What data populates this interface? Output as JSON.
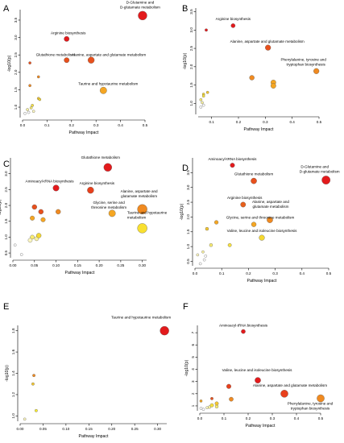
{
  "chart_data": [
    {
      "type": "scatter",
      "letter": "A",
      "xlabel": "Pathway Impact",
      "ylabel": "-log10(p)",
      "xlim": [
        0,
        0.5
      ],
      "ylim": [
        0.7,
        3.8
      ],
      "xticks": [
        0,
        0.1,
        0.2,
        0.3,
        0.4,
        0.5
      ],
      "yticks": [
        1.0,
        1.5,
        2.0,
        2.5,
        3.0,
        3.5
      ],
      "points": [
        {
          "x": 0.49,
          "y": 3.63,
          "size": 5.5,
          "color": "#e31a1c"
        },
        {
          "x": 0.18,
          "y": 2.96,
          "size": 3.2,
          "color": "#e31a1c"
        },
        {
          "x": 0.18,
          "y": 2.35,
          "size": 3.2,
          "color": "#e8501c"
        },
        {
          "x": 0.28,
          "y": 2.35,
          "size": 4.0,
          "color": "#e8501c"
        },
        {
          "x": 0.33,
          "y": 1.48,
          "size": 4.2,
          "color": "#f5a623"
        },
        {
          "x": 0.03,
          "y": 2.27,
          "size": 1.6,
          "color": "#e8501c"
        },
        {
          "x": 0.03,
          "y": 1.62,
          "size": 1.6,
          "color": "#f08a20"
        },
        {
          "x": 0.065,
          "y": 1.87,
          "size": 1.6,
          "color": "#f08a20"
        },
        {
          "x": 0.065,
          "y": 1.25,
          "size": 1.6,
          "color": "#f5c830"
        },
        {
          "x": 0.07,
          "y": 1.22,
          "size": 1.6,
          "color": "#f5d830"
        },
        {
          "x": 0.04,
          "y": 1.05,
          "size": 1.6,
          "color": "#f7e040"
        },
        {
          "x": 0.035,
          "y": 0.98,
          "size": 1.6,
          "color": "#f9ec70"
        },
        {
          "x": 0.02,
          "y": 0.93,
          "size": 1.6,
          "color": "#fbf3a0"
        },
        {
          "x": 0.045,
          "y": 0.88,
          "size": 1.6,
          "color": "#fdf7c0"
        },
        {
          "x": 0.025,
          "y": 0.85,
          "size": 1.6,
          "color": "#ffffff"
        },
        {
          "x": 0.01,
          "y": 0.82,
          "size": 1.6,
          "color": "#ffffff"
        }
      ],
      "annotations": [
        {
          "text": "D-Glutamine and",
          "point": 0,
          "dx": -3,
          "dy": -15
        },
        {
          "text": "D-glutamate metabolism",
          "point": 0,
          "dx": -3,
          "dy": -9
        },
        {
          "text": "Arginine biosynthesis",
          "point": 1,
          "dx": 2,
          "dy": -6
        },
        {
          "text": "Glutathione metabolism",
          "point": 2,
          "dx": -14,
          "dy": -5
        },
        {
          "text": "Alanine, aspartate and glutamate metabolism",
          "point": 3,
          "dx": 22,
          "dy": -5
        },
        {
          "text": "Taurine and hypotaurine metabolism",
          "point": 4,
          "dx": 6,
          "dy": -7
        }
      ]
    },
    {
      "type": "scatter",
      "letter": "B",
      "xlabel": "Pathway Impact",
      "ylabel": "-log10(p)",
      "xlim": [
        0.05,
        0.5
      ],
      "ylim": [
        0.7,
        3.6
      ],
      "xticks": [
        0.1,
        0.2,
        0.3,
        0.4,
        0.5
      ],
      "yticks": [
        1.0,
        1.5,
        2.0,
        2.5,
        3.0,
        3.5
      ],
      "points": [
        {
          "x": 0.18,
          "y": 3.12,
          "size": 2.6,
          "color": "#e31a1c"
        },
        {
          "x": 0.08,
          "y": 3.0,
          "size": 1.7,
          "color": "#e31a1c"
        },
        {
          "x": 0.31,
          "y": 2.52,
          "size": 3.4,
          "color": "#e8501c"
        },
        {
          "x": 0.49,
          "y": 1.88,
          "size": 3.4,
          "color": "#f08a20"
        },
        {
          "x": 0.25,
          "y": 1.7,
          "size": 3.0,
          "color": "#f08a20"
        },
        {
          "x": 0.33,
          "y": 1.57,
          "size": 3.2,
          "color": "#f5a623"
        },
        {
          "x": 0.33,
          "y": 1.48,
          "size": 3.2,
          "color": "#f5a623"
        },
        {
          "x": 0.085,
          "y": 1.3,
          "size": 1.6,
          "color": "#f5c830"
        },
        {
          "x": 0.07,
          "y": 1.25,
          "size": 1.6,
          "color": "#f5d830"
        },
        {
          "x": 0.07,
          "y": 1.2,
          "size": 1.6,
          "color": "#f7e040"
        },
        {
          "x": 0.06,
          "y": 1.1,
          "size": 1.6,
          "color": "#f9ec70"
        },
        {
          "x": 0.065,
          "y": 1.02,
          "size": 1.6,
          "color": "#fbf3a0"
        },
        {
          "x": 0.07,
          "y": 0.95,
          "size": 1.6,
          "color": "#ffffff"
        },
        {
          "x": 0.06,
          "y": 0.9,
          "size": 1.6,
          "color": "#ffffff"
        }
      ],
      "annotations": [
        {
          "text": "Arginine biosynthesis",
          "point": 0,
          "dx": 0,
          "dy": -7
        },
        {
          "text": "Alanine, aspartate and glutamate metabolism",
          "point": 2,
          "dx": -1,
          "dy": -6
        },
        {
          "text": "Phenylalanine, tyrosine and",
          "point": 3,
          "dx": -16,
          "dy": -13
        },
        {
          "text": "tryptophan biosynthesis",
          "point": 3,
          "dx": -13,
          "dy": -7
        }
      ]
    },
    {
      "type": "scatter",
      "letter": "C",
      "xlabel": "Pathway Impact",
      "ylabel": "-log10(p)",
      "xlim": [
        0,
        0.31
      ],
      "ylim": [
        0.35,
        3.5
      ],
      "xticks": [
        0.0,
        0.05,
        0.1,
        0.15,
        0.2,
        0.25,
        0.3
      ],
      "yticks": [
        0.5,
        1.0,
        1.5,
        2.0,
        2.5,
        3.0
      ],
      "points": [
        {
          "x": 0.22,
          "y": 3.2,
          "size": 5.0,
          "color": "#e31a1c"
        },
        {
          "x": 0.1,
          "y": 2.55,
          "size": 3.8,
          "color": "#e31a1c"
        },
        {
          "x": 0.18,
          "y": 2.48,
          "size": 4.0,
          "color": "#e8401c"
        },
        {
          "x": 0.3,
          "y": 1.88,
          "size": 6.0,
          "color": "#f08a20"
        },
        {
          "x": 0.23,
          "y": 1.75,
          "size": 4.2,
          "color": "#f5a623"
        },
        {
          "x": 0.3,
          "y": 1.28,
          "size": 6.0,
          "color": "#f9e030"
        },
        {
          "x": 0.05,
          "y": 1.95,
          "size": 3.0,
          "color": "#e8501c"
        },
        {
          "x": 0.065,
          "y": 1.8,
          "size": 3.0,
          "color": "#e8501c"
        },
        {
          "x": 0.105,
          "y": 1.8,
          "size": 3.0,
          "color": "#f08a20"
        },
        {
          "x": 0.045,
          "y": 1.6,
          "size": 2.8,
          "color": "#f5a623"
        },
        {
          "x": 0.07,
          "y": 1.55,
          "size": 2.8,
          "color": "#f5a623"
        },
        {
          "x": 0.06,
          "y": 1.05,
          "size": 3.0,
          "color": "#f5d830"
        },
        {
          "x": 0.045,
          "y": 1.0,
          "size": 2.6,
          "color": "#f9ec70"
        },
        {
          "x": 0.055,
          "y": 0.95,
          "size": 2.6,
          "color": "#fbf3a0"
        },
        {
          "x": 0.04,
          "y": 0.9,
          "size": 2.6,
          "color": "#fdf7c0"
        },
        {
          "x": 0.005,
          "y": 0.75,
          "size": 1.6,
          "color": "#ffffff"
        },
        {
          "x": 0.02,
          "y": 0.45,
          "size": 1.6,
          "color": "#ffffff"
        }
      ],
      "annotations": [
        {
          "text": "Glutathione metabolism",
          "point": 0,
          "dx": -9,
          "dy": -11
        },
        {
          "text": "Aminoacyl-tRNA biosynthesis",
          "point": 1,
          "dx": -8,
          "dy": -7
        },
        {
          "text": "Arginine biosynthesis",
          "point": 2,
          "dx": 8,
          "dy": -7
        },
        {
          "text": "Alanine, aspartate and",
          "point": 3,
          "dx": -4,
          "dy": -21
        },
        {
          "text": "glutamate metabolism",
          "point": 3,
          "dx": -4,
          "dy": -15
        },
        {
          "text": "Glycine, serine and",
          "point": 4,
          "dx": -4,
          "dy": -12
        },
        {
          "text": "threonine metabolism",
          "point": 4,
          "dx": -4,
          "dy": -6
        },
        {
          "text": "Taurine and hypotaurine",
          "point": 5,
          "dx": 6,
          "dy": -18
        },
        {
          "text": "metabolism",
          "point": 5,
          "dx": -7,
          "dy": -12
        }
      ]
    },
    {
      "type": "scatter",
      "letter": "D",
      "xlabel": "Pathway Impact",
      "ylabel": "-log10(p)",
      "xlim": [
        0,
        0.5
      ],
      "ylim": [
        0.35,
        4.0
      ],
      "xticks": [
        0.0,
        0.1,
        0.2,
        0.3,
        0.4,
        0.5
      ],
      "yticks": [
        0.5,
        1.0,
        1.5,
        2.0,
        2.5,
        3.0,
        3.5
      ],
      "points": [
        {
          "x": 0.14,
          "y": 3.75,
          "size": 2.8,
          "color": "#e31a1c"
        },
        {
          "x": 0.49,
          "y": 3.25,
          "size": 5.2,
          "color": "#e31a1c"
        },
        {
          "x": 0.22,
          "y": 3.22,
          "size": 3.6,
          "color": "#e8501c"
        },
        {
          "x": 0.18,
          "y": 2.42,
          "size": 3.2,
          "color": "#e8601c"
        },
        {
          "x": 0.28,
          "y": 1.9,
          "size": 3.6,
          "color": "#f08a20"
        },
        {
          "x": 0.22,
          "y": 1.75,
          "size": 3.0,
          "color": "#f5a623"
        },
        {
          "x": 0.25,
          "y": 1.3,
          "size": 3.4,
          "color": "#f5d830"
        },
        {
          "x": 0.08,
          "y": 1.82,
          "size": 2.4,
          "color": "#f5a623"
        },
        {
          "x": 0.045,
          "y": 1.6,
          "size": 2.0,
          "color": "#f5c830"
        },
        {
          "x": 0.13,
          "y": 1.05,
          "size": 2.2,
          "color": "#f7e040"
        },
        {
          "x": 0.06,
          "y": 1.05,
          "size": 2.0,
          "color": "#f9ec70"
        },
        {
          "x": 0.03,
          "y": 0.82,
          "size": 1.6,
          "color": "#fbf3a0"
        },
        {
          "x": 0.01,
          "y": 0.72,
          "size": 1.6,
          "color": "#fdf7c0"
        },
        {
          "x": 0.04,
          "y": 0.68,
          "size": 1.6,
          "color": "#ffffff"
        },
        {
          "x": 0.035,
          "y": 0.55,
          "size": 1.6,
          "color": "#ffffff"
        },
        {
          "x": 0.02,
          "y": 0.42,
          "size": 1.6,
          "color": "#ffffff"
        }
      ],
      "annotations": [
        {
          "text": "Aminoacyl-tRNA biosynthesis",
          "point": 0,
          "dx": 0,
          "dy": -6
        },
        {
          "text": "Glutathione metabolism",
          "point": 2,
          "dx": 0,
          "dy": -7
        },
        {
          "text": "Alanine, aspartate and",
          "point": 4,
          "dx": 1,
          "dy": -21
        },
        {
          "text": "D-Glutamine and",
          "point": 1,
          "dx": -14,
          "dy": -15
        },
        {
          "text": "D-glutamate metabolism",
          "point": 1,
          "dx": -8,
          "dy": -9
        },
        {
          "text": "Arginine biosynthesis",
          "point": 3,
          "dx": 2,
          "dy": -7
        },
        {
          "text": "glutamate metabolism",
          "point": 4,
          "dx": 1,
          "dy": -15
        },
        {
          "text": "Glycine, serine and threonine metabolism",
          "point": 5,
          "dx": 8,
          "dy": -7
        },
        {
          "text": "Valine, leucine and isoleucine biosynthesis",
          "point": 6,
          "dx": 0,
          "dy": -7
        }
      ]
    },
    {
      "type": "scatter",
      "letter": "E",
      "xlabel": "Pathway Impact",
      "ylabel": "-log10(p)",
      "xlim": [
        0,
        0.32
      ],
      "ylim": [
        0.95,
        1.85
      ],
      "xticks": [
        0.0,
        0.05,
        0.1,
        0.15,
        0.2,
        0.25,
        0.3
      ],
      "yticks": [
        1.0,
        1.2,
        1.4,
        1.6,
        1.8
      ],
      "points": [
        {
          "x": 0.315,
          "y": 1.8,
          "size": 5.5,
          "color": "#e31a1c"
        },
        {
          "x": 0.03,
          "y": 1.38,
          "size": 1.7,
          "color": "#f08a20"
        },
        {
          "x": 0.028,
          "y": 1.3,
          "size": 1.7,
          "color": "#f5c830"
        },
        {
          "x": 0.035,
          "y": 1.05,
          "size": 1.7,
          "color": "#f9ec30"
        },
        {
          "x": 0.01,
          "y": 0.97,
          "size": 1.6,
          "color": "#fdf7c0"
        }
      ],
      "annotations": [
        {
          "text": "Taurine and hypotaurine metabolism",
          "point": 0,
          "dx": -29,
          "dy": -15
        }
      ]
    },
    {
      "type": "scatter",
      "letter": "F",
      "xlabel": "Pathway Impact",
      "ylabel": "-log10(p)",
      "xlim": [
        0,
        0.5
      ],
      "ylim": [
        0.6,
        7.6
      ],
      "xticks": [
        0.0,
        0.1,
        0.2,
        0.3,
        0.4,
        0.5
      ],
      "yticks": [
        1,
        2,
        3,
        4,
        5,
        6,
        7
      ],
      "points": [
        {
          "x": 0.18,
          "y": 7.1,
          "size": 2.6,
          "color": "#e31a1c"
        },
        {
          "x": 0.24,
          "y": 3.1,
          "size": 3.6,
          "color": "#e31a1c"
        },
        {
          "x": 0.12,
          "y": 2.6,
          "size": 2.8,
          "color": "#e8401c"
        },
        {
          "x": 0.35,
          "y": 2.0,
          "size": 4.6,
          "color": "#e8401c"
        },
        {
          "x": 0.5,
          "y": 1.62,
          "size": 4.6,
          "color": "#f08a20"
        },
        {
          "x": 0.13,
          "y": 1.55,
          "size": 2.6,
          "color": "#f08a20"
        },
        {
          "x": 0.05,
          "y": 1.6,
          "size": 1.7,
          "color": "#e8501c"
        },
        {
          "x": 0.005,
          "y": 1.4,
          "size": 1.6,
          "color": "#f5a623"
        },
        {
          "x": 0.07,
          "y": 1.2,
          "size": 2.2,
          "color": "#f5c830"
        },
        {
          "x": 0.05,
          "y": 1.05,
          "size": 2.2,
          "color": "#f7e040"
        },
        {
          "x": 0.07,
          "y": 0.95,
          "size": 2.0,
          "color": "#f9ec70"
        },
        {
          "x": 0.04,
          "y": 0.9,
          "size": 1.8,
          "color": "#fbf3a0"
        },
        {
          "x": 0.03,
          "y": 0.85,
          "size": 1.6,
          "color": "#fdf7c0"
        },
        {
          "x": 0.005,
          "y": 0.8,
          "size": 1.6,
          "color": "#ffffff"
        },
        {
          "x": 0.015,
          "y": 0.72,
          "size": 1.6,
          "color": "#ffffff"
        }
      ],
      "annotations": [
        {
          "text": "Aminoacyl-tRNA biosynthesis",
          "point": 0,
          "dx": 0,
          "dy": -6
        },
        {
          "text": "Valine, leucine and isoleucine biosynthesis",
          "point": 1,
          "dx": -1,
          "dy": -11
        },
        {
          "text": "Alanine, aspartate and glutamate metabolism",
          "point": 3,
          "dx": 7,
          "dy": -9
        },
        {
          "text": "Phenylalanine, tyrosine and",
          "point": 4,
          "dx": -13,
          "dy": 8
        },
        {
          "text": "tryptophan biosynthesis",
          "point": 4,
          "dx": -13,
          "dy": 14
        }
      ]
    }
  ]
}
